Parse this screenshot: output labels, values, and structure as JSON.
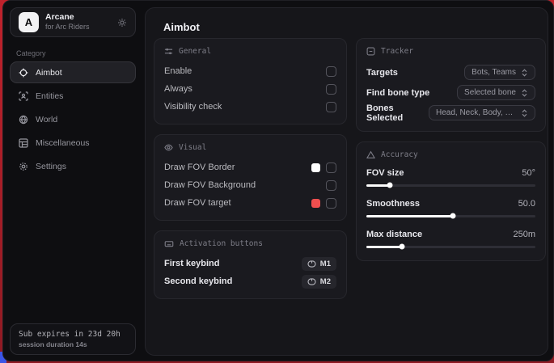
{
  "app": {
    "logo_letter": "A",
    "name": "Arcane",
    "subtitle": "for Arc Riders"
  },
  "sidebar": {
    "category_label": "Category",
    "items": [
      {
        "label": "Aimbot",
        "icon": "crosshair-icon",
        "active": true
      },
      {
        "label": "Entities",
        "icon": "entities-icon",
        "active": false
      },
      {
        "label": "World",
        "icon": "globe-icon",
        "active": false
      },
      {
        "label": "Miscellaneous",
        "icon": "grid-icon",
        "active": false
      },
      {
        "label": "Settings",
        "icon": "gear-icon",
        "active": false
      }
    ],
    "subscription": {
      "line1": "Sub expires in 23d 20h",
      "line2": "session duration 14s"
    }
  },
  "header": {
    "title": "Aimbot"
  },
  "cards": {
    "general": {
      "title": "General",
      "rows": [
        {
          "label": "Enable",
          "checked": false
        },
        {
          "label": "Always",
          "checked": false
        },
        {
          "label": "Visibility check",
          "checked": false
        }
      ]
    },
    "visual": {
      "title": "Visual",
      "rows": [
        {
          "label": "Draw FOV Border",
          "swatch": "#ffffff",
          "checked": false
        },
        {
          "label": "Draw FOV Background",
          "checked": false
        },
        {
          "label": "Draw FOV target",
          "swatch": "#ef4f4f",
          "checked": false
        }
      ]
    },
    "activation": {
      "title": "Activation buttons",
      "rows": [
        {
          "label": "First keybind",
          "key": "M1"
        },
        {
          "label": "Second keybind",
          "key": "M2"
        }
      ]
    },
    "tracker": {
      "title": "Tracker",
      "rows": [
        {
          "label": "Targets",
          "value": "Bots, Teams"
        },
        {
          "label": "Find bone type",
          "value": "Selected bone"
        },
        {
          "label": "Bones Selected",
          "value": "Head, Neck, Body, Fe..."
        }
      ]
    },
    "accuracy": {
      "title": "Accuracy",
      "rows": [
        {
          "label": "FOV size",
          "value": "50°",
          "percent": 14
        },
        {
          "label": "Smoothness",
          "value": "50.0",
          "percent": 51
        },
        {
          "label": "Max distance",
          "value": "250m",
          "percent": 21
        }
      ]
    }
  },
  "colors": {
    "accent_red": "#ef4f4f",
    "swatch_white": "#ffffff",
    "desktop_red": "#c0222c"
  }
}
